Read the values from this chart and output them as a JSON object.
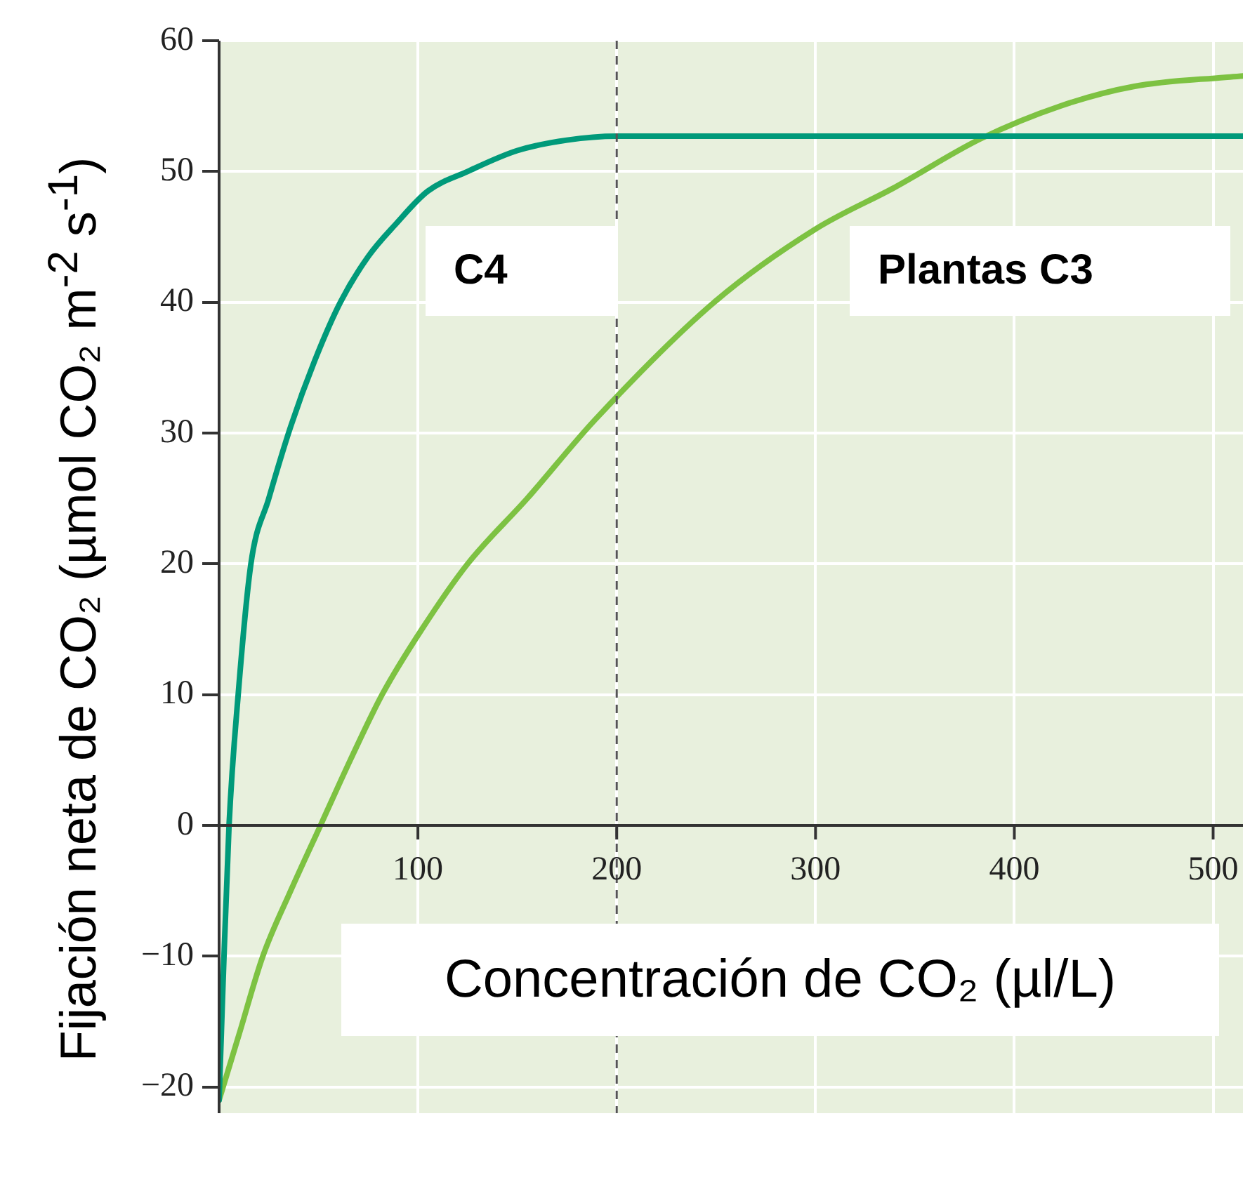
{
  "chart_data": {
    "type": "line",
    "xlabel": "Concentración de CO₂ (µl/L)",
    "ylabel": "Fijación neta de CO₂ (µmol CO₂ m$^{-2}$ s$^{-1}$)",
    "xlim": [
      0,
      515
    ],
    "ylim": [
      -22,
      60
    ],
    "xticks": [
      100,
      200,
      300,
      400,
      500
    ],
    "yticks": [
      -20,
      -10,
      0,
      10,
      20,
      30,
      40,
      50,
      60
    ],
    "grid": true,
    "legend": false,
    "ref_lines": [
      {
        "axis": "x",
        "value": 200,
        "color": "#555555",
        "line_style": "dashed"
      }
    ],
    "series": [
      {
        "name": "C4",
        "color": "#009a7a",
        "x": [
          0,
          2,
          5,
          9.6,
          16,
          25,
          36,
          48,
          61,
          75,
          89,
          105,
          125,
          150,
          175,
          200,
          515
        ],
        "values": [
          -21,
          -12,
          0,
          10,
          20,
          25,
          30.5,
          35.5,
          40,
          43.5,
          46,
          48.5,
          50,
          51.6,
          52.4,
          52.7,
          52.7
        ]
      },
      {
        "name": "Plantas C3",
        "color": "#7dc242",
        "x": [
          0,
          10,
          22,
          36,
          51,
          66,
          82,
          102,
          125,
          155,
          189,
          249,
          300,
          340,
          383,
          423,
          460,
          506,
          515
        ],
        "values": [
          -21,
          -16,
          -10,
          -5,
          0,
          5,
          10,
          15,
          20,
          25,
          31,
          40,
          45.6,
          48.8,
          52.5,
          55,
          56.5,
          57.2,
          57.3
        ]
      }
    ]
  }
}
